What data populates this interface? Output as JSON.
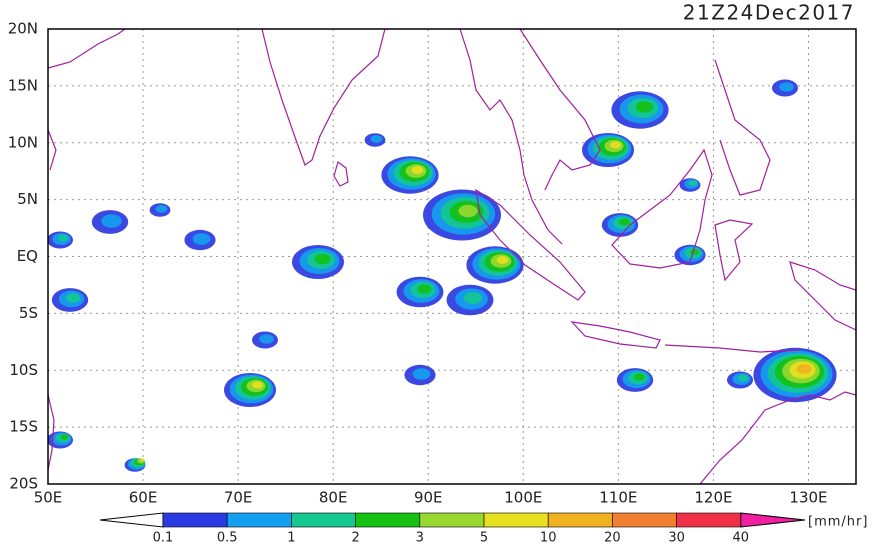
{
  "header": {
    "timestamp": "21Z24Dec2017"
  },
  "map": {
    "lat_labels": [
      "20N",
      "15N",
      "10N",
      "5N",
      "EQ",
      "5S",
      "10S",
      "15S",
      "20S"
    ],
    "lon_labels": [
      "50E",
      "60E",
      "70E",
      "80E",
      "90E",
      "100E",
      "110E",
      "120E",
      "130E"
    ]
  },
  "legend": {
    "labels": [
      "0.1",
      "0.5",
      "1",
      "2",
      "3",
      "5",
      "10",
      "20",
      "30",
      "40"
    ],
    "colors": [
      "#2a3ae0",
      "#14a0f0",
      "#14c890",
      "#14c014",
      "#98d830",
      "#e8e020",
      "#f0b020",
      "#f08030",
      "#f03048"
    ],
    "unit": "[mm/hr]"
  }
}
